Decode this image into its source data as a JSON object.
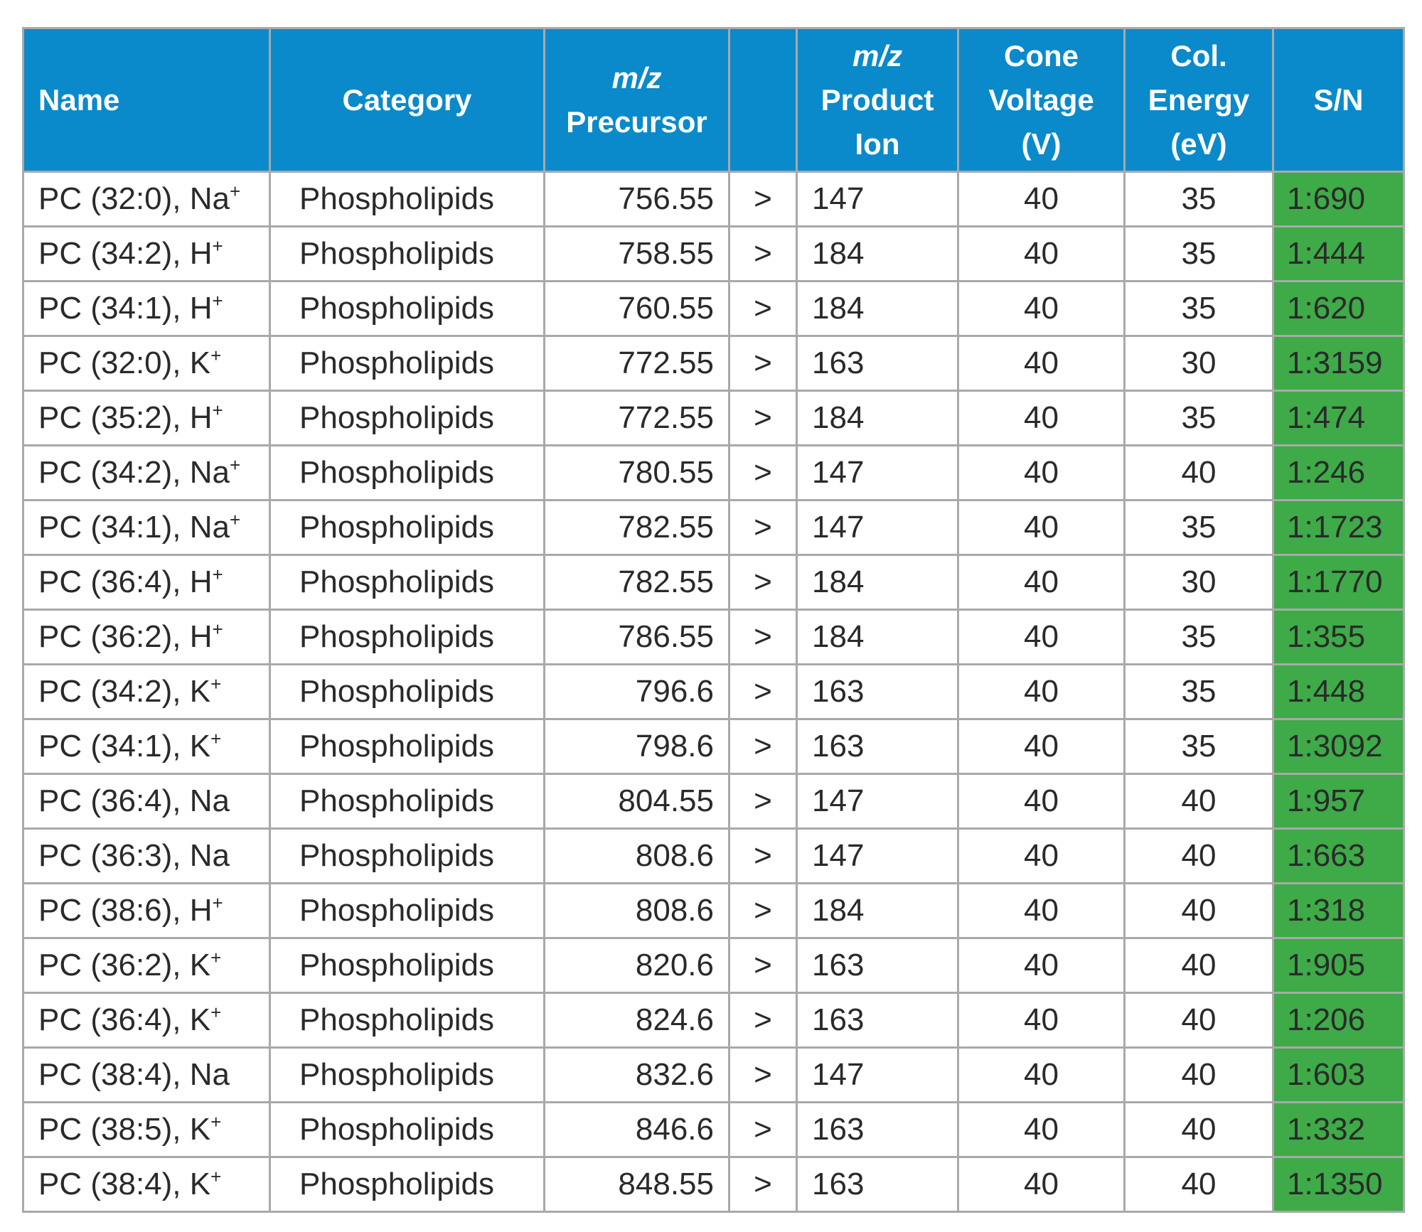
{
  "table": {
    "headers": {
      "name": "Name",
      "category": "Category",
      "precursor_italic": "m/z",
      "precursor": "Precursor",
      "arrow": "",
      "product_italic": "m/z",
      "product_line1": "Product",
      "product_line2": "Ion",
      "cone_line1": "Cone",
      "cone_line2": "Voltage",
      "cone_line3": "(V)",
      "ce_line1": "Col.",
      "ce_line2": "Energy",
      "ce_line3": "(eV)",
      "sn": "S/N"
    },
    "colors": {
      "header_bg": "#0a8acb",
      "sn_bg": "#3eaa48",
      "blue": "#1e8fc6",
      "red": "#d62f3a",
      "black": "#2a2a2a",
      "grid": "#a9a9a9"
    },
    "rows": [
      {
        "name": "PC (32:0), Na",
        "ion": "+",
        "color": "blue",
        "category": "Phospholipids",
        "precursor": "756.55",
        "arrow": ">",
        "product": "147",
        "cone": "40",
        "ce": "35",
        "sn": "1:690"
      },
      {
        "name": "PC (34:2), H",
        "ion": "+",
        "color": "red",
        "category": "Phospholipids",
        "precursor": "758.55",
        "arrow": ">",
        "product": "184",
        "cone": "40",
        "ce": "35",
        "sn": "1:444"
      },
      {
        "name": "PC (34:1), H",
        "ion": "+",
        "color": "red",
        "category": "Phospholipids",
        "precursor": "760.55",
        "arrow": ">",
        "product": "184",
        "cone": "40",
        "ce": "35",
        "sn": "1:620"
      },
      {
        "name": "PC (32:0), K",
        "ion": "+",
        "color": "black",
        "category": "Phospholipids",
        "precursor": "772.55",
        "arrow": ">",
        "product": "163",
        "cone": "40",
        "ce": "30",
        "sn": "1:3159"
      },
      {
        "name": "PC (35:2), H",
        "ion": "+",
        "color": "black",
        "category": "Phospholipids",
        "precursor": "772.55",
        "arrow": ">",
        "product": "184",
        "cone": "40",
        "ce": "35",
        "sn": "1:474"
      },
      {
        "name": "PC (34:2), Na",
        "ion": "+",
        "color": "blue",
        "category": "Phospholipids",
        "precursor": "780.55",
        "arrow": ">",
        "product": "147",
        "cone": "40",
        "ce": "40",
        "sn": "1:246"
      },
      {
        "name": "PC (34:1), Na",
        "ion": "+",
        "color": "blue",
        "category": "Phospholipids",
        "precursor": "782.55",
        "arrow": ">",
        "product": "147",
        "cone": "40",
        "ce": "35",
        "sn": "1:1723"
      },
      {
        "name": "PC (36:4), H",
        "ion": "+",
        "color": "red",
        "category": "Phospholipids",
        "precursor": "782.55",
        "arrow": ">",
        "product": "184",
        "cone": "40",
        "ce": "30",
        "sn": "1:1770"
      },
      {
        "name": "PC (36:2), H",
        "ion": "+",
        "color": "red",
        "category": "Phospholipids",
        "precursor": "786.55",
        "arrow": ">",
        "product": "184",
        "cone": "40",
        "ce": "35",
        "sn": "1:355"
      },
      {
        "name": "PC (34:2), K",
        "ion": "+",
        "color": "black",
        "category": "Phospholipids",
        "precursor": "796.6",
        "arrow": ">",
        "product": "163",
        "cone": "40",
        "ce": "35",
        "sn": "1:448"
      },
      {
        "name": "PC (34:1), K",
        "ion": "+",
        "color": "black",
        "category": "Phospholipids",
        "precursor": "798.6",
        "arrow": ">",
        "product": "163",
        "cone": "40",
        "ce": "35",
        "sn": "1:3092"
      },
      {
        "name": "PC (36:4), Na",
        "ion": "",
        "color": "blue",
        "category": "Phospholipids",
        "precursor": "804.55",
        "arrow": ">",
        "product": "147",
        "cone": "40",
        "ce": "40",
        "sn": "1:957"
      },
      {
        "name": "PC (36:3), Na",
        "ion": "",
        "color": "blue",
        "category": "Phospholipids",
        "precursor": "808.6",
        "arrow": ">",
        "product": "147",
        "cone": "40",
        "ce": "40",
        "sn": "1:663"
      },
      {
        "name": "PC (38:6), H",
        "ion": "+",
        "color": "red",
        "category": "Phospholipids",
        "precursor": "808.6",
        "arrow": ">",
        "product": "184",
        "cone": "40",
        "ce": "40",
        "sn": "1:318"
      },
      {
        "name": "PC (36:2), K",
        "ion": "+",
        "color": "black",
        "category": "Phospholipids",
        "precursor": "820.6",
        "arrow": ">",
        "product": "163",
        "cone": "40",
        "ce": "40",
        "sn": "1:905"
      },
      {
        "name": "PC (36:4), K",
        "ion": "+",
        "color": "black",
        "category": "Phospholipids",
        "precursor": "824.6",
        "arrow": ">",
        "product": "163",
        "cone": "40",
        "ce": "40",
        "sn": "1:206"
      },
      {
        "name": "PC (38:4), Na",
        "ion": "",
        "color": "blue",
        "category": "Phospholipids",
        "precursor": "832.6",
        "arrow": ">",
        "product": "147",
        "cone": "40",
        "ce": "40",
        "sn": "1:603"
      },
      {
        "name": "PC (38:5), K",
        "ion": "+",
        "color": "black",
        "category": "Phospholipids",
        "precursor": "846.6",
        "arrow": ">",
        "product": "163",
        "cone": "40",
        "ce": "40",
        "sn": "1:332"
      },
      {
        "name": "PC (38:4), K",
        "ion": "+",
        "color": "black",
        "category": "Phospholipids",
        "precursor": "848.55",
        "arrow": ">",
        "product": "163",
        "cone": "40",
        "ce": "40",
        "sn": "1:1350"
      }
    ]
  }
}
